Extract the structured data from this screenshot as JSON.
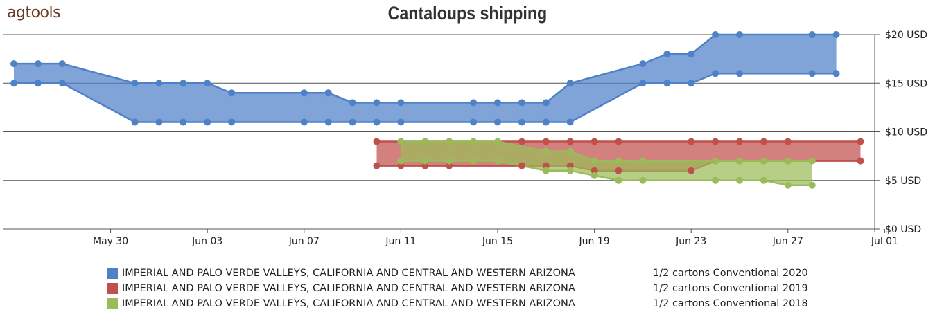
{
  "logo": {
    "text": "agtools"
  },
  "chart_data": {
    "type": "area",
    "title": "Cantaloups shipping",
    "xlabel": "",
    "ylabel": "",
    "x_ticks": [
      "May 30",
      "Jun 03",
      "Jun 07",
      "Jun 11",
      "Jun 15",
      "Jun 19",
      "Jun 23",
      "Jun 27",
      "Jul 01"
    ],
    "y_ticks": [
      "$0 USD",
      "$5 USD",
      "$10 USD",
      "$15 USD",
      "$20 USD"
    ],
    "ylim": [
      0,
      20
    ],
    "xlim": [
      "2020-05-26",
      "2020-07-01"
    ],
    "grid": "horizontal",
    "legend_position": "bottom",
    "series": [
      {
        "name": "IMPERIAL AND PALO VERDE VALLEYS, CALIFORNIA AND CENTRAL AND WESTERN ARIZONA",
        "unit": "1/2 cartons Conventional 2020",
        "color": "#4f81c7",
        "x": [
          "2020-05-26",
          "2020-05-27",
          "2020-05-28",
          "2020-05-31",
          "2020-06-01",
          "2020-06-02",
          "2020-06-03",
          "2020-06-04",
          "2020-06-07",
          "2020-06-08",
          "2020-06-09",
          "2020-06-10",
          "2020-06-11",
          "2020-06-14",
          "2020-06-15",
          "2020-06-16",
          "2020-06-17",
          "2020-06-18",
          "2020-06-21",
          "2020-06-22",
          "2020-06-23",
          "2020-06-24",
          "2020-06-25",
          "2020-06-28",
          "2020-06-29"
        ],
        "high": [
          17,
          17,
          17,
          15,
          15,
          15,
          15,
          14,
          14,
          14,
          13,
          13,
          13,
          13,
          13,
          13,
          13,
          15,
          17,
          18,
          18,
          20,
          20,
          20,
          20
        ],
        "low": [
          15,
          15,
          15,
          11,
          11,
          11,
          11,
          11,
          11,
          11,
          11,
          11,
          11,
          11,
          11,
          11,
          11,
          11,
          15,
          15,
          15,
          16,
          16,
          16,
          16
        ]
      },
      {
        "name": "IMPERIAL AND PALO VERDE VALLEYS, CALIFORNIA AND CENTRAL AND WESTERN ARIZONA",
        "unit": "1/2 cartons Conventional 2019",
        "color": "#c0504d",
        "x": [
          "2020-06-10",
          "2020-06-11",
          "2020-06-12",
          "2020-06-13",
          "2020-06-16",
          "2020-06-17",
          "2020-06-18",
          "2020-06-19",
          "2020-06-20",
          "2020-06-23",
          "2020-06-24",
          "2020-06-25",
          "2020-06-26",
          "2020-06-27",
          "2020-06-30"
        ],
        "high": [
          9,
          9,
          9,
          9,
          9,
          9,
          9,
          9,
          9,
          9,
          9,
          9,
          9,
          9,
          9
        ],
        "low": [
          6.5,
          6.5,
          6.5,
          6.5,
          6.5,
          6.5,
          6.5,
          6,
          6,
          6,
          7,
          7,
          7,
          7,
          7
        ]
      },
      {
        "name": "IMPERIAL AND PALO VERDE VALLEYS, CALIFORNIA AND CENTRAL AND WESTERN ARIZONA",
        "unit": "1/2 cartons Conventional 2018",
        "color": "#9bbb59",
        "x": [
          "2020-06-11",
          "2020-06-12",
          "2020-06-13",
          "2020-06-14",
          "2020-06-15",
          "2020-06-17",
          "2020-06-18",
          "2020-06-19",
          "2020-06-20",
          "2020-06-21",
          "2020-06-24",
          "2020-06-25",
          "2020-06-26",
          "2020-06-27",
          "2020-06-28"
        ],
        "high": [
          9,
          9,
          9,
          9,
          9,
          8,
          8,
          7,
          7,
          7,
          7,
          7,
          7,
          7,
          7
        ],
        "low": [
          7,
          7,
          7,
          7,
          7,
          6,
          6,
          5.5,
          5,
          5,
          5,
          5,
          5,
          4.5,
          4.5
        ]
      }
    ]
  }
}
